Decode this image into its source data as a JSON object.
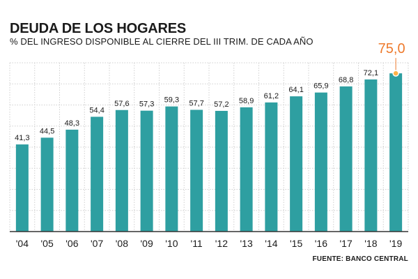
{
  "chart_data": {
    "type": "bar",
    "title": "DEUDA DE LOS HOGARES",
    "subtitle": "% DEL INGRESO DISPONIBLE AL CIERRE DEL III TRIM. DE CADA AÑO",
    "source": "FUENTE: BANCO CENTRAL",
    "categories": [
      "'04",
      "'05",
      "'06",
      "'07",
      "'08",
      "'09",
      "'10",
      "'11",
      "'12",
      "'13",
      "'14",
      "'15",
      "'16",
      "'17",
      "'18",
      "'19"
    ],
    "values": [
      41.3,
      44.5,
      48.3,
      54.4,
      57.6,
      57.3,
      59.3,
      57.7,
      57.2,
      58.9,
      61.2,
      64.1,
      65.9,
      68.8,
      72.1,
      75.0
    ],
    "value_labels": [
      "41,3",
      "44,5",
      "48,3",
      "54,4",
      "57,6",
      "57,3",
      "59,3",
      "57,7",
      "57,2",
      "58,9",
      "61,2",
      "64,1",
      "65,9",
      "68,8",
      "72,1",
      "75,0"
    ],
    "highlight_index": 15,
    "ylim": [
      0,
      80
    ],
    "grid": true,
    "colors": {
      "bar": "#2e9fa1",
      "highlight_label": "#ee7a2c",
      "grid": "#cfcfcf",
      "axis": "#333333"
    }
  }
}
